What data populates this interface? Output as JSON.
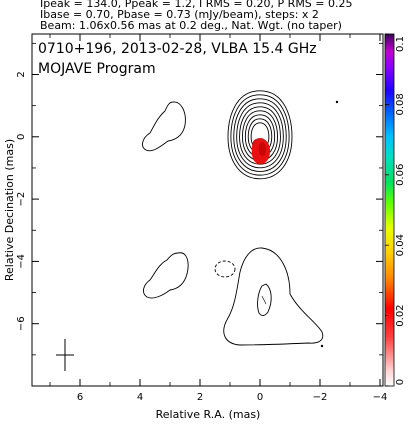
{
  "header": {
    "line1": "Ipeak = 134.0, Ppeak = 1.2, I RMS = 0.20, P RMS = 0.25",
    "line2": "Ibase = 0.70, Pbase = 0.73 (mJy/beam), steps: x 2",
    "line3": "Beam: 1.06x0.56 mas at 0.2 deg., Nat. Wgt. (no taper)"
  },
  "chart_data": {
    "type": "contour",
    "title": "0710+196, 2013-02-28, VLBA 15.4 GHz",
    "subtitle": "MOJAVE Program",
    "xlabel": "Relative R.A. (mas)",
    "ylabel": "Relative Decination (mas)",
    "xlim": [
      7.6,
      -4.1
    ],
    "ylim": [
      -8.0,
      3.3
    ],
    "x_ticks": [
      6,
      4,
      2,
      0,
      -2,
      -4
    ],
    "y_ticks": [
      2,
      0,
      -2,
      -4,
      -6
    ],
    "colorbar": {
      "min": 0,
      "max": 0.1,
      "ticks": [
        0,
        0.02,
        0.04,
        0.06,
        0.08,
        0.1
      ],
      "tick_labels": [
        "0",
        "0.02",
        "0.04",
        "0.06",
        "0.08",
        "0.1"
      ]
    },
    "beam": {
      "major_mas": 1.06,
      "minor_mas": 0.56,
      "pa_deg": 0.2,
      "center": [
        6.6,
        -6.75
      ]
    },
    "core": {
      "x": 0,
      "y": 0,
      "levels": 9
    },
    "components": [
      {
        "name": "core",
        "x": 0.0,
        "y": 0.0
      },
      {
        "name": "upper-left-blob",
        "x": 3.0,
        "y": 0.9
      },
      {
        "name": "lower-left-blob",
        "x": 3.0,
        "y": -4.1
      },
      {
        "name": "lower-right-region",
        "x": 0.0,
        "y": -5.3
      }
    ],
    "polarized_flux_peaks": [
      {
        "x": 0.0,
        "y": -0.05,
        "color": "#e81010"
      }
    ]
  }
}
